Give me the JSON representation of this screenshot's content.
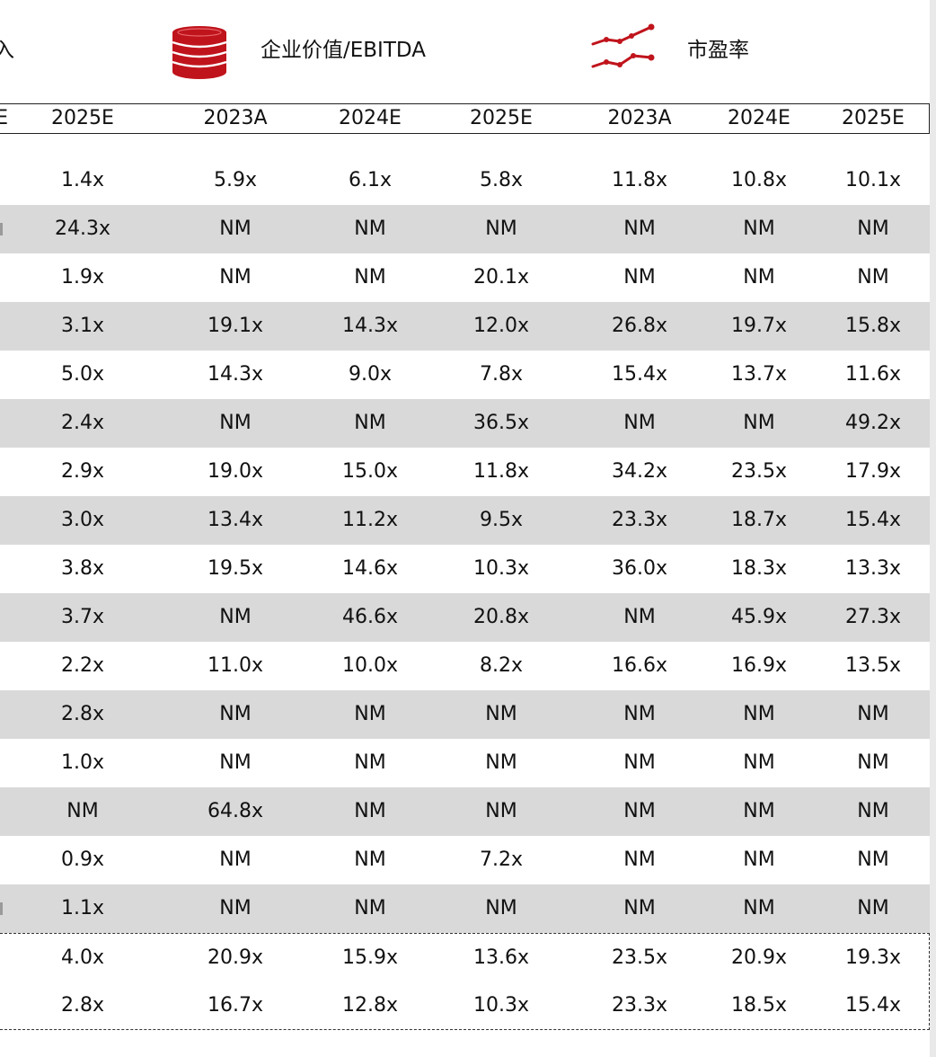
{
  "header": {
    "cut_label": "入",
    "ev_label": "企业价值/EBITDA",
    "pe_label": "市盈率",
    "accent_color": "#c0141c",
    "icons": [
      "coin-stack-icon",
      "line-trend-icon"
    ]
  },
  "years": [
    "E",
    "2025E",
    "2023A",
    "2024E",
    "2025E",
    "2023A",
    "2024E",
    "2025E"
  ],
  "rows": [
    [
      "1.4x",
      "5.9x",
      "6.1x",
      "5.8x",
      "11.8x",
      "10.8x",
      "10.1x"
    ],
    [
      "24.3x",
      "NM",
      "NM",
      "NM",
      "NM",
      "NM",
      "NM"
    ],
    [
      "1.9x",
      "NM",
      "NM",
      "20.1x",
      "NM",
      "NM",
      "NM"
    ],
    [
      "3.1x",
      "19.1x",
      "14.3x",
      "12.0x",
      "26.8x",
      "19.7x",
      "15.8x"
    ],
    [
      "5.0x",
      "14.3x",
      "9.0x",
      "7.8x",
      "15.4x",
      "13.7x",
      "11.6x"
    ],
    [
      "2.4x",
      "NM",
      "NM",
      "36.5x",
      "NM",
      "NM",
      "49.2x"
    ],
    [
      "2.9x",
      "19.0x",
      "15.0x",
      "11.8x",
      "34.2x",
      "23.5x",
      "17.9x"
    ],
    [
      "3.0x",
      "13.4x",
      "11.2x",
      "9.5x",
      "23.3x",
      "18.7x",
      "15.4x"
    ],
    [
      "3.8x",
      "19.5x",
      "14.6x",
      "10.3x",
      "36.0x",
      "18.3x",
      "13.3x"
    ],
    [
      "3.7x",
      "NM",
      "46.6x",
      "20.8x",
      "NM",
      "45.9x",
      "27.3x"
    ],
    [
      "2.2x",
      "11.0x",
      "10.0x",
      "8.2x",
      "16.6x",
      "16.9x",
      "13.5x"
    ],
    [
      "2.8x",
      "NM",
      "NM",
      "NM",
      "NM",
      "NM",
      "NM"
    ],
    [
      "1.0x",
      "NM",
      "NM",
      "NM",
      "NM",
      "NM",
      "NM"
    ],
    [
      "NM",
      "64.8x",
      "NM",
      "NM",
      "NM",
      "NM",
      "NM"
    ],
    [
      "0.9x",
      "NM",
      "NM",
      "7.2x",
      "NM",
      "NM",
      "NM"
    ],
    [
      "1.1x",
      "NM",
      "NM",
      "NM",
      "NM",
      "NM",
      "NM"
    ]
  ],
  "summary": [
    [
      "4.0x",
      "20.9x",
      "15.9x",
      "13.6x",
      "23.5x",
      "20.9x",
      "19.3x"
    ],
    [
      "2.8x",
      "16.7x",
      "12.8x",
      "10.3x",
      "23.3x",
      "18.5x",
      "15.4x"
    ]
  ]
}
